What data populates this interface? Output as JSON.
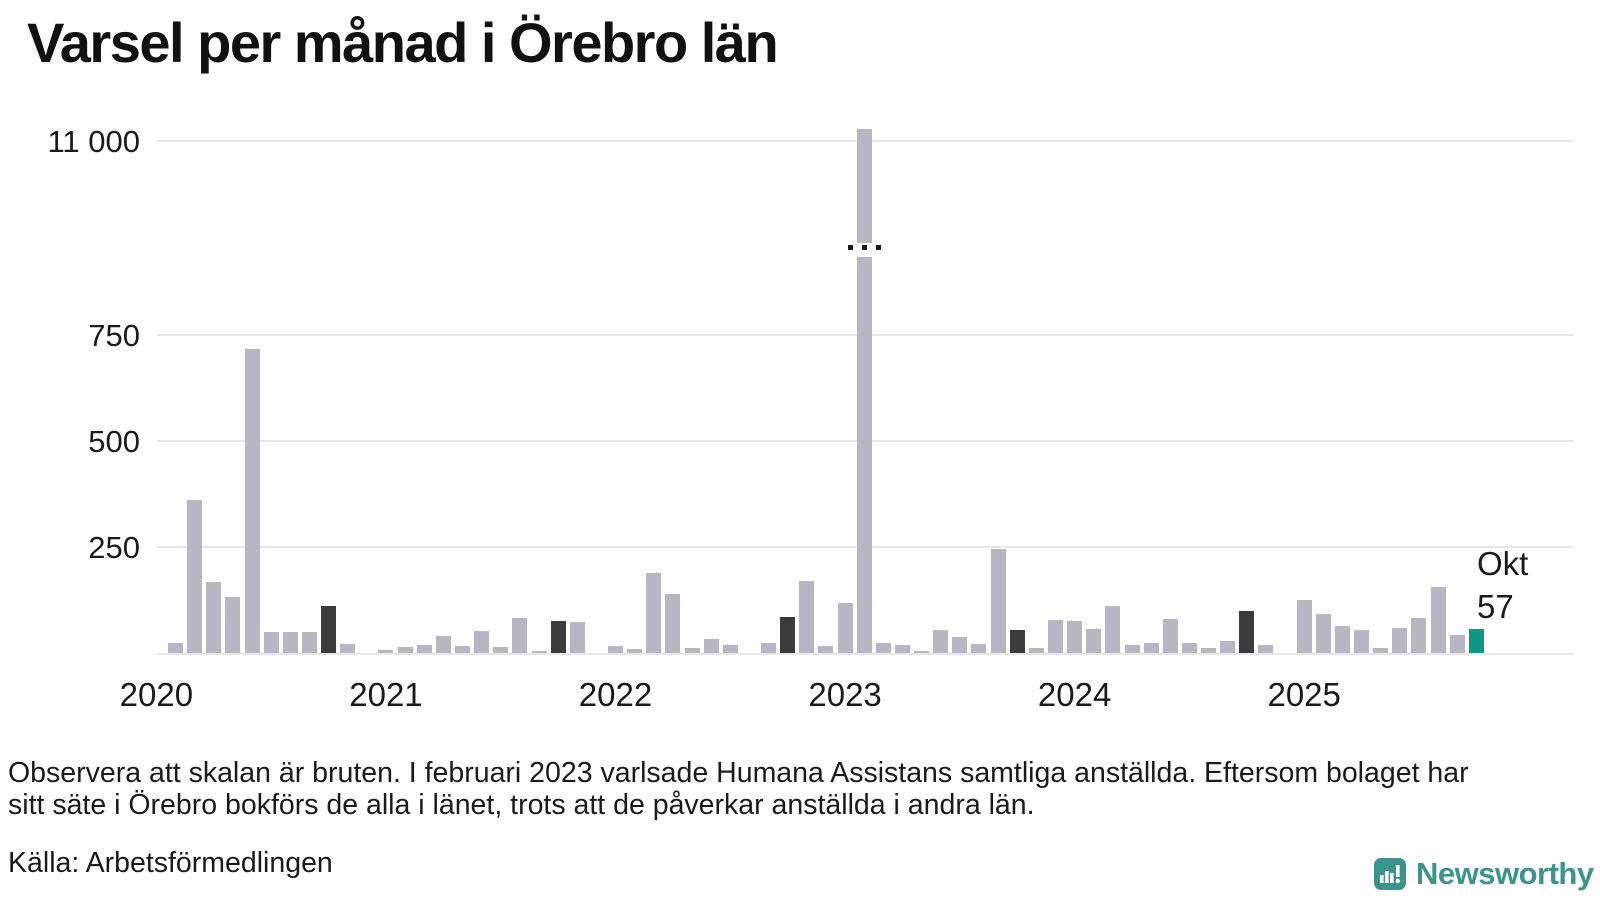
{
  "title": "Varsel per månad i Örebro län",
  "footnote": {
    "line1": "Observera att skalan är bruten. I februari 2023 varlsade Humana Assistans samtliga anställda. Eftersom bolaget har",
    "line2": "sitt säte i Örebro bokförs de alla i länet, trots att de påverkar anställda i andra län."
  },
  "source": "Källa: Arbetsförmedlingen",
  "logo": {
    "text": "Newsworthy"
  },
  "annotation": {
    "line1": "Okt",
    "line2": "57"
  },
  "colors": {
    "bar": "#b9b6c4",
    "bar_highlight_dark": "#3b3b3b",
    "bar_highlight_teal": "#109582",
    "gridline": "#e7e6eb",
    "text": "#1a1a1a",
    "title": "#111111",
    "logo_teal": "#3a948b",
    "background": "#ffffff"
  },
  "chart_data": {
    "type": "bar",
    "title": "Varsel per månad i Örebro län",
    "x_unit": "month",
    "grid": "horizontal",
    "ylim": [
      0,
      780
    ],
    "scale_break": {
      "index": 37,
      "category": "2023-02",
      "bar_value_approx": 11100,
      "note": "Scale broken above 750; February 2023 bar (Humana Assistans) extends past 11 000"
    },
    "y_ticks": [
      {
        "label": "250",
        "value": 250
      },
      {
        "label": "500",
        "value": 500
      },
      {
        "label": "750",
        "value": 750
      },
      {
        "label": "11 000",
        "value": 11000,
        "above_scale_break": true
      }
    ],
    "x_tick_labels": [
      "2020",
      "2021",
      "2022",
      "2023",
      "2024",
      "2025"
    ],
    "highlight_dark_categories": [
      "2020-10",
      "2021-10",
      "2022-10",
      "2023-10",
      "2024-10"
    ],
    "highlight_teal_category": "2025-10",
    "categories": [
      "2020-01",
      "2020-02",
      "2020-03",
      "2020-04",
      "2020-05",
      "2020-06",
      "2020-07",
      "2020-08",
      "2020-09",
      "2020-10",
      "2020-11",
      "2020-12",
      "2021-01",
      "2021-02",
      "2021-03",
      "2021-04",
      "2021-05",
      "2021-06",
      "2021-07",
      "2021-08",
      "2021-09",
      "2021-10",
      "2021-11",
      "2021-12",
      "2022-01",
      "2022-02",
      "2022-03",
      "2022-04",
      "2022-05",
      "2022-06",
      "2022-07",
      "2022-08",
      "2022-09",
      "2022-10",
      "2022-11",
      "2022-12",
      "2023-01",
      "2023-02",
      "2023-03",
      "2023-04",
      "2023-05",
      "2023-06",
      "2023-07",
      "2023-08",
      "2023-09",
      "2023-10",
      "2023-11",
      "2023-12",
      "2024-01",
      "2024-02",
      "2024-03",
      "2024-04",
      "2024-05",
      "2024-06",
      "2024-07",
      "2024-08",
      "2024-09",
      "2024-10",
      "2024-11",
      "2024-12",
      "2025-01",
      "2025-02",
      "2025-03",
      "2025-04",
      "2025-05",
      "2025-06",
      "2025-07",
      "2025-08",
      "2025-09",
      "2025-10"
    ],
    "values": [
      0,
      24,
      360,
      167,
      132,
      718,
      50,
      50,
      49,
      110,
      22,
      0,
      8,
      14,
      20,
      39,
      16,
      51,
      14,
      83,
      4,
      75,
      72,
      0,
      17,
      9,
      188,
      140,
      12,
      34,
      19,
      0,
      24,
      86,
      170,
      17,
      117,
      11100,
      24,
      19,
      5,
      54,
      37,
      21,
      245,
      54,
      12,
      78,
      76,
      57,
      111,
      19,
      24,
      80,
      23,
      11,
      29,
      98,
      19,
      0,
      125,
      91,
      64,
      54,
      11,
      58,
      82,
      156,
      42,
      57
    ]
  }
}
